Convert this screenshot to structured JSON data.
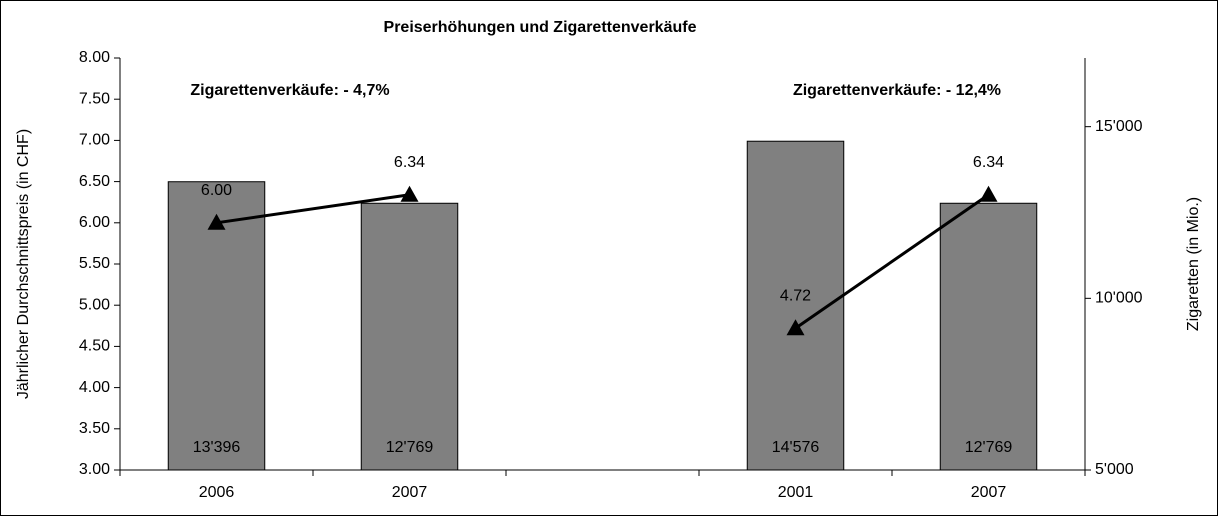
{
  "chart_data": {
    "type": "bar-line",
    "title": "Preiserhöhungen und Zigarettenverkäufe",
    "ylabel": "Jährlicher Durchschnittspreis (in CHF)",
    "y2label": "Zigaretten (in Mio.)",
    "annotations": [
      "Zigarettenverkäufe: - 4,7%",
      "Zigarettenverkäufe: - 12,4%"
    ],
    "categories": [
      "2006",
      "2007",
      null,
      "2001",
      "2007"
    ],
    "series": [
      {
        "type": "bar",
        "axis": "y2",
        "color": "#808080",
        "values": [
          13396,
          12769,
          null,
          14576,
          12769
        ],
        "value_labels": [
          "13'396",
          "12'769",
          null,
          "14'576",
          "12'769"
        ]
      },
      {
        "type": "line",
        "axis": "y",
        "color": "#000000",
        "values": [
          6.0,
          6.34,
          null,
          4.72,
          6.34
        ],
        "value_labels": [
          "6.00",
          "6.34",
          null,
          "4.72",
          "6.34"
        ]
      }
    ],
    "ylim": [
      3,
      8
    ],
    "yticks": [
      {
        "value": 3,
        "label": "3.00"
      },
      {
        "value": 3.5,
        "label": "3.50"
      },
      {
        "value": 4,
        "label": "4.00"
      },
      {
        "value": 4.5,
        "label": "4.50"
      },
      {
        "value": 5,
        "label": "5.00"
      },
      {
        "value": 5.5,
        "label": "5.50"
      },
      {
        "value": 6,
        "label": "6.00"
      },
      {
        "value": 6.5,
        "label": "6.50"
      },
      {
        "value": 7,
        "label": "7.00"
      },
      {
        "value": 7.5,
        "label": "7.50"
      },
      {
        "value": 8,
        "label": "8.00"
      }
    ],
    "y2lim": [
      5000,
      17000
    ],
    "y2ticks": [
      {
        "value": 5000,
        "label": "5'000"
      },
      {
        "value": 10000,
        "label": "10'000"
      },
      {
        "value": 15000,
        "label": "15'000"
      }
    ]
  }
}
